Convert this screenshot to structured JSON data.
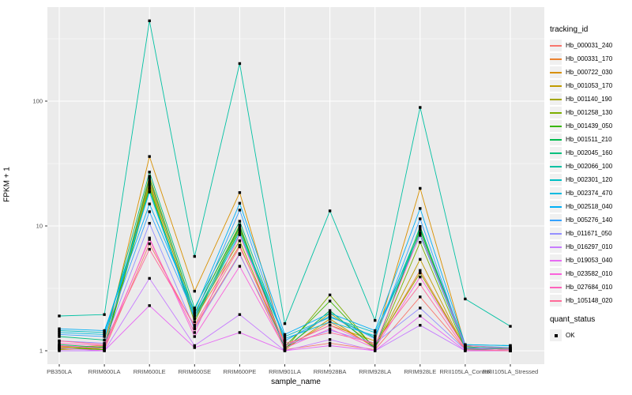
{
  "figure": {
    "bg": "#FFFFFF",
    "panel_bg": "#EBEBEB",
    "grid_major_color": "#FFFFFF",
    "grid_minor_color": "#FFFFFF",
    "tick_color": "#333333",
    "tick_label_color": "#4D4D4D",
    "point_color": "#000000"
  },
  "chart_data": {
    "type": "line",
    "x_type": "categorical",
    "xlabel": "sample_name",
    "ylabel": "FPKM + 1",
    "y_scale": "log10",
    "ylim": [
      0.79,
      560
    ],
    "y_tick_values": [
      1,
      10,
      100
    ],
    "y_tick_labels": [
      "1",
      "10",
      "100"
    ],
    "y_minor_values": [
      3.162,
      31.62,
      316.2
    ],
    "grid": true,
    "legend_position": "right",
    "categories": [
      "PB350LA",
      "RRIM600LA",
      "RRIM600LE",
      "RRIM600SE",
      "RRIM600PE",
      "RRIM901LA",
      "RRIM928BA",
      "RRIM928LA",
      "RRIM928LE",
      "RRII105LA_Control",
      "RRII105LA_Stressed"
    ],
    "legend_title": "tracking_id",
    "series": [
      {
        "name": "Hb_000031_240",
        "color": "#F8766D",
        "values": [
          1.05,
          1.02,
          7.2,
          1.55,
          6.0,
          1.02,
          1.15,
          1.02,
          2.7,
          1.02,
          1.0
        ]
      },
      {
        "name": "Hb_000331_170",
        "color": "#EA8331",
        "values": [
          1.08,
          1.05,
          23,
          1.8,
          7.0,
          1.05,
          1.7,
          1.08,
          4.4,
          1.05,
          1.02
        ]
      },
      {
        "name": "Hb_000722_030",
        "color": "#D89000",
        "values": [
          1.06,
          1.1,
          36,
          3.0,
          18.5,
          1.1,
          1.6,
          1.2,
          20,
          1.1,
          1.05
        ]
      },
      {
        "name": "Hb_001053_170",
        "color": "#C09B00",
        "values": [
          1.02,
          1.05,
          25,
          2.0,
          10.2,
          1.02,
          1.8,
          1.05,
          5.4,
          1.02,
          1.0
        ]
      },
      {
        "name": "Hb_001140_190",
        "color": "#A3A500",
        "values": [
          1.1,
          1.02,
          22,
          1.9,
          7.6,
          1.05,
          2.0,
          1.1,
          4.2,
          1.05,
          1.02
        ]
      },
      {
        "name": "Hb_001258_130",
        "color": "#7CAE00",
        "values": [
          1.03,
          1.08,
          21,
          1.7,
          9.4,
          1.02,
          2.8,
          1.03,
          7.4,
          1.02,
          1.05
        ]
      },
      {
        "name": "Hb_001439_050",
        "color": "#39B600",
        "values": [
          1.05,
          1.02,
          20,
          1.8,
          9.8,
          1.08,
          2.5,
          1.05,
          9.3,
          1.08,
          1.02
        ]
      },
      {
        "name": "Hb_001511_210",
        "color": "#00BB4E",
        "values": [
          1.12,
          1.06,
          24,
          2.0,
          10.0,
          1.03,
          2.1,
          1.04,
          9.9,
          1.03,
          1.03
        ]
      },
      {
        "name": "Hb_002045_160",
        "color": "#00BF7D",
        "values": [
          1.3,
          1.22,
          27,
          2.2,
          10.9,
          1.2,
          1.9,
          1.28,
          9.6,
          1.12,
          1.1
        ]
      },
      {
        "name": "Hb_002066_100",
        "color": "#00C1A3",
        "values": [
          1.9,
          1.95,
          440,
          5.7,
          200,
          1.65,
          13.2,
          1.75,
          89,
          2.6,
          1.57
        ]
      },
      {
        "name": "Hb_002301_120",
        "color": "#00BFC4",
        "values": [
          1.45,
          1.4,
          19,
          1.9,
          9.0,
          1.3,
          1.85,
          1.4,
          8.8,
          1.1,
          1.06
        ]
      },
      {
        "name": "Hb_002374_470",
        "color": "#00BAE0",
        "values": [
          1.4,
          1.35,
          18.7,
          1.8,
          8.6,
          1.25,
          1.7,
          1.32,
          8.4,
          1.06,
          1.05
        ]
      },
      {
        "name": "Hb_002518_040",
        "color": "#00B0F6",
        "values": [
          1.5,
          1.45,
          15,
          2.1,
          15.2,
          1.35,
          2.0,
          1.45,
          13.8,
          1.12,
          1.1
        ]
      },
      {
        "name": "Hb_005276_140",
        "color": "#35A2FF",
        "values": [
          1.35,
          1.3,
          13,
          1.9,
          13.4,
          1.2,
          1.9,
          1.25,
          11.4,
          1.05,
          1.02
        ]
      },
      {
        "name": "Hb_011671_050",
        "color": "#9590FF",
        "values": [
          1.2,
          1.15,
          10.5,
          1.5,
          5.9,
          1.1,
          1.46,
          1.15,
          2.2,
          1.02,
          1.0
        ]
      },
      {
        "name": "Hb_016297_010",
        "color": "#C77CFF",
        "values": [
          1.0,
          1.0,
          3.8,
          1.1,
          1.95,
          1.0,
          1.23,
          1.0,
          1.6,
          1.0,
          1.0
        ]
      },
      {
        "name": "Hb_019053_040",
        "color": "#E76BF3",
        "values": [
          1.05,
          1.0,
          2.3,
          1.06,
          1.4,
          1.0,
          1.1,
          1.0,
          1.9,
          1.0,
          1.0
        ]
      },
      {
        "name": "Hb_023582_010",
        "color": "#FA62DB",
        "values": [
          1.1,
          1.05,
          8.0,
          1.3,
          4.75,
          1.05,
          1.5,
          1.05,
          3.9,
          1.05,
          1.02
        ]
      },
      {
        "name": "Hb_027684_010",
        "color": "#FF62BC",
        "values": [
          1.15,
          1.1,
          7.8,
          1.4,
          8.5,
          1.1,
          1.6,
          1.1,
          8.6,
          1.1,
          1.05
        ]
      },
      {
        "name": "Hb_105148_020",
        "color": "#FF6A98",
        "values": [
          1.2,
          1.12,
          6.5,
          1.6,
          6.8,
          1.15,
          1.4,
          1.15,
          3.4,
          1.02,
          1.0
        ]
      }
    ],
    "quant_status": {
      "title": "quant_status",
      "items": [
        {
          "label": "OK",
          "shape": "square",
          "color": "#000000"
        }
      ]
    }
  }
}
